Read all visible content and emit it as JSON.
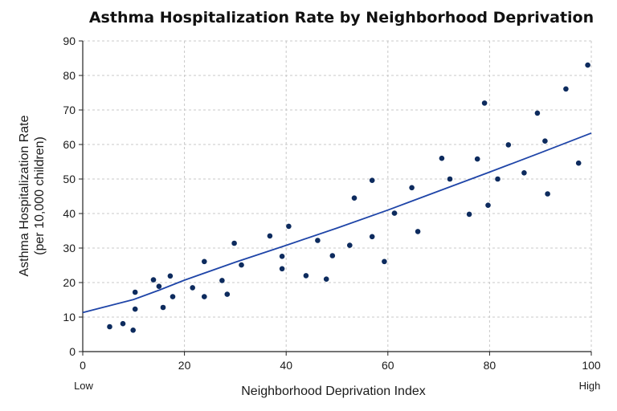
{
  "chart_data": {
    "type": "scatter",
    "title": "Asthma Hospitalization Rate by Neighborhood Deprivation",
    "xlabel": "Neighborhood Deprivation Index",
    "ylabel_line1": "Asthma Hospitalization Rate",
    "ylabel_line2": "(per 10,000 children)",
    "x_low_label": "Low",
    "x_high_label": "High",
    "xlim": [
      0,
      100
    ],
    "ylim": [
      0,
      90
    ],
    "xticks": [
      0,
      20,
      40,
      60,
      80,
      100
    ],
    "yticks": [
      0,
      10,
      20,
      30,
      40,
      50,
      60,
      70,
      80,
      90
    ],
    "grid": true,
    "colors": {
      "points": "#0d2b5e",
      "trend": "#1f45a8"
    },
    "points": [
      {
        "x": 5.3,
        "y": 7.2
      },
      {
        "x": 7.9,
        "y": 8.1
      },
      {
        "x": 9.9,
        "y": 6.2
      },
      {
        "x": 10.3,
        "y": 17.2
      },
      {
        "x": 10.3,
        "y": 12.3
      },
      {
        "x": 13.9,
        "y": 20.8
      },
      {
        "x": 15.0,
        "y": 18.9
      },
      {
        "x": 15.8,
        "y": 12.8
      },
      {
        "x": 17.2,
        "y": 21.9
      },
      {
        "x": 17.7,
        "y": 15.9
      },
      {
        "x": 21.6,
        "y": 18.5
      },
      {
        "x": 23.9,
        "y": 26.1
      },
      {
        "x": 23.9,
        "y": 15.9
      },
      {
        "x": 27.4,
        "y": 20.6
      },
      {
        "x": 28.4,
        "y": 16.6
      },
      {
        "x": 29.8,
        "y": 31.4
      },
      {
        "x": 31.2,
        "y": 25.1
      },
      {
        "x": 36.8,
        "y": 33.5
      },
      {
        "x": 39.2,
        "y": 27.6
      },
      {
        "x": 39.2,
        "y": 24.0
      },
      {
        "x": 40.5,
        "y": 36.3
      },
      {
        "x": 43.9,
        "y": 22.0
      },
      {
        "x": 46.2,
        "y": 32.2
      },
      {
        "x": 47.9,
        "y": 21.0
      },
      {
        "x": 49.1,
        "y": 27.8
      },
      {
        "x": 52.5,
        "y": 30.8
      },
      {
        "x": 53.4,
        "y": 44.5
      },
      {
        "x": 56.9,
        "y": 49.6
      },
      {
        "x": 56.9,
        "y": 33.3
      },
      {
        "x": 59.3,
        "y": 26.1
      },
      {
        "x": 61.3,
        "y": 40.1
      },
      {
        "x": 64.7,
        "y": 47.5
      },
      {
        "x": 65.9,
        "y": 34.8
      },
      {
        "x": 70.6,
        "y": 56.0
      },
      {
        "x": 72.2,
        "y": 50.0
      },
      {
        "x": 76.0,
        "y": 39.8
      },
      {
        "x": 77.6,
        "y": 55.8
      },
      {
        "x": 79.0,
        "y": 72.0
      },
      {
        "x": 79.7,
        "y": 42.4
      },
      {
        "x": 81.6,
        "y": 50.0
      },
      {
        "x": 83.7,
        "y": 59.9
      },
      {
        "x": 86.8,
        "y": 51.8
      },
      {
        "x": 89.4,
        "y": 69.1
      },
      {
        "x": 90.9,
        "y": 61.0
      },
      {
        "x": 91.4,
        "y": 45.7
      },
      {
        "x": 95.0,
        "y": 76.1
      },
      {
        "x": 97.5,
        "y": 54.6
      },
      {
        "x": 99.3,
        "y": 83.0
      }
    ],
    "trend_line": [
      {
        "x": 0,
        "y": 11.3
      },
      {
        "x": 5,
        "y": 13.2
      },
      {
        "x": 10,
        "y": 15.1
      },
      {
        "x": 15,
        "y": 17.8
      },
      {
        "x": 20,
        "y": 20.7
      },
      {
        "x": 30,
        "y": 25.9
      },
      {
        "x": 40,
        "y": 30.8
      },
      {
        "x": 50,
        "y": 35.8
      },
      {
        "x": 60,
        "y": 41.0
      },
      {
        "x": 70,
        "y": 46.5
      },
      {
        "x": 80,
        "y": 52.0
      },
      {
        "x": 90,
        "y": 57.6
      },
      {
        "x": 100,
        "y": 63.3
      }
    ]
  }
}
